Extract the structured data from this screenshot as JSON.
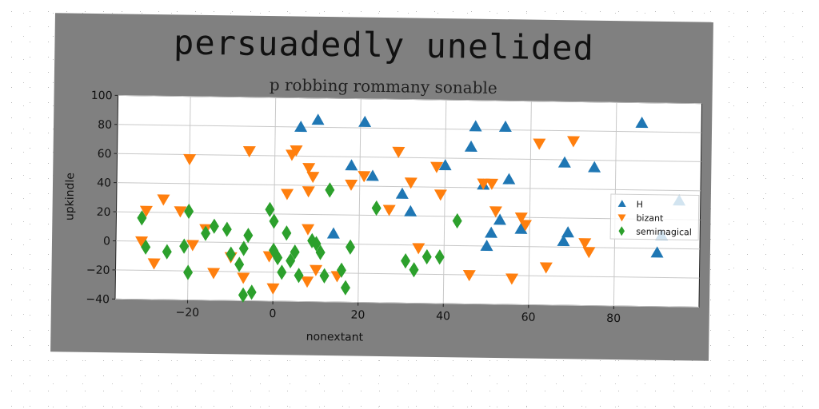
{
  "chart_data": {
    "type": "scatter",
    "title": "persuadedly unelided",
    "subtitle": "p robbing rommany sonable",
    "xlabel": "nonextant",
    "ylabel": "upkindle",
    "xlim": [
      -37,
      100
    ],
    "ylim": [
      -40,
      100
    ],
    "xticks": [
      -20,
      0,
      20,
      40,
      60,
      80
    ],
    "yticks": [
      -40,
      -20,
      0,
      20,
      40,
      60,
      80,
      100
    ],
    "grid": true,
    "legend_position": "center-right",
    "series": [
      {
        "name": "H",
        "marker": "triangle-up",
        "color": "#1f77b4",
        "points": [
          [
            6,
            80
          ],
          [
            10,
            85
          ],
          [
            21,
            84
          ],
          [
            46,
            68
          ],
          [
            47,
            82
          ],
          [
            54,
            82
          ],
          [
            86,
            86
          ],
          [
            18,
            54
          ],
          [
            23,
            47
          ],
          [
            30,
            35
          ],
          [
            32,
            23
          ],
          [
            40,
            55
          ],
          [
            49,
            42
          ],
          [
            53,
            18
          ],
          [
            55,
            46
          ],
          [
            51,
            9
          ],
          [
            50,
            0
          ],
          [
            58,
            12
          ],
          [
            68,
            58
          ],
          [
            75,
            55
          ],
          [
            69,
            10
          ],
          [
            68,
            4
          ],
          [
            14,
            7
          ],
          [
            91,
            9
          ],
          [
            95,
            33
          ],
          [
            90,
            -3
          ]
        ]
      },
      {
        "name": "bizant",
        "marker": "triangle-down",
        "color": "#ff7f0e",
        "points": [
          [
            -30,
            21
          ],
          [
            -26,
            29
          ],
          [
            -22,
            21
          ],
          [
            -20,
            57
          ],
          [
            -31,
            0
          ],
          [
            -28,
            -15
          ],
          [
            -16,
            9
          ],
          [
            -19,
            -2
          ],
          [
            -14,
            -21
          ],
          [
            -10,
            -10
          ],
          [
            -7,
            -24
          ],
          [
            -6,
            63
          ],
          [
            -1,
            -9
          ],
          [
            0,
            -31
          ],
          [
            4,
            61
          ],
          [
            5,
            64
          ],
          [
            3,
            34
          ],
          [
            8,
            36
          ],
          [
            8,
            52
          ],
          [
            9,
            46
          ],
          [
            8,
            10
          ],
          [
            10,
            -18
          ],
          [
            8,
            -26
          ],
          [
            15,
            -22
          ],
          [
            18,
            41
          ],
          [
            21,
            47
          ],
          [
            27,
            24
          ],
          [
            29,
            64
          ],
          [
            32,
            43
          ],
          [
            34,
            -2
          ],
          [
            38,
            54
          ],
          [
            39,
            35
          ],
          [
            46,
            -20
          ],
          [
            49,
            43
          ],
          [
            51,
            43
          ],
          [
            52,
            24
          ],
          [
            56,
            -22
          ],
          [
            58,
            20
          ],
          [
            59,
            15
          ],
          [
            62,
            71
          ],
          [
            64,
            -14
          ],
          [
            70,
            73
          ],
          [
            73,
            3
          ],
          [
            74,
            -3
          ]
        ]
      },
      {
        "name": "semimagical",
        "marker": "diamond",
        "color": "#2ca02c",
        "points": [
          [
            -31,
            16
          ],
          [
            -30,
            -4
          ],
          [
            -25,
            -7
          ],
          [
            -21,
            -3
          ],
          [
            -20,
            21
          ],
          [
            -20,
            -21
          ],
          [
            -16,
            6
          ],
          [
            -14,
            11
          ],
          [
            -11,
            9
          ],
          [
            -10,
            -8
          ],
          [
            -8,
            -15
          ],
          [
            -7,
            -4
          ],
          [
            -6,
            5
          ],
          [
            -7,
            -36
          ],
          [
            -5,
            -34
          ],
          [
            -1,
            23
          ],
          [
            0,
            15
          ],
          [
            0,
            -5
          ],
          [
            1,
            -10
          ],
          [
            2,
            -20
          ],
          [
            3,
            7
          ],
          [
            4,
            -12
          ],
          [
            6,
            -22
          ],
          [
            5,
            -6
          ],
          [
            9,
            2
          ],
          [
            10,
            0
          ],
          [
            11,
            -6
          ],
          [
            12,
            -22
          ],
          [
            13,
            37
          ],
          [
            16,
            -18
          ],
          [
            17,
            -30
          ],
          [
            18,
            -2
          ],
          [
            24,
            25
          ],
          [
            31,
            -11
          ],
          [
            33,
            -17
          ],
          [
            36,
            -8
          ],
          [
            39,
            -8
          ],
          [
            43,
            17
          ]
        ]
      }
    ]
  }
}
